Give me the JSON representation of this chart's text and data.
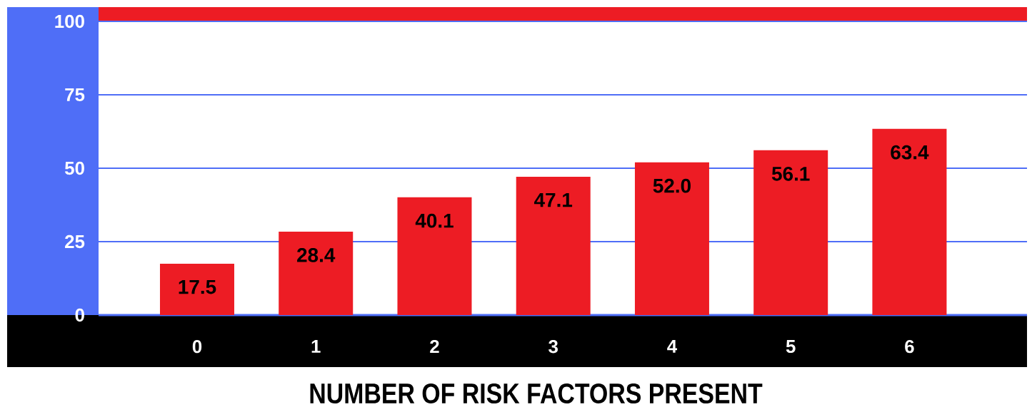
{
  "chart_data": {
    "type": "bar",
    "xlabel": "NUMBER OF RISK FACTORS PRESENT",
    "categories": [
      "0",
      "1",
      "2",
      "3",
      "4",
      "5",
      "6"
    ],
    "values": [
      17.5,
      28.4,
      40.1,
      47.1,
      52.0,
      56.1,
      63.4
    ],
    "value_labels": [
      "17.5",
      "28.4",
      "40.1",
      "47.1",
      "52.0",
      "56.1",
      "63.4"
    ],
    "color": "#ed1c24",
    "ylim": [
      0,
      100
    ],
    "yticks": [
      0,
      25,
      50,
      75,
      100
    ],
    "grid": "y"
  }
}
